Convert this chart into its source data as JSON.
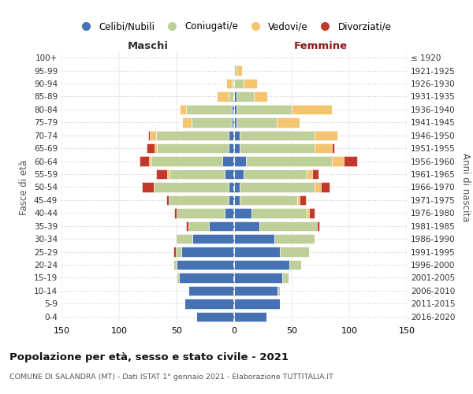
{
  "age_groups": [
    "100+",
    "95-99",
    "90-94",
    "85-89",
    "80-84",
    "75-79",
    "70-74",
    "65-69",
    "60-64",
    "55-59",
    "50-54",
    "45-49",
    "40-44",
    "35-39",
    "30-34",
    "25-29",
    "20-24",
    "15-19",
    "10-14",
    "5-9",
    "0-4"
  ],
  "birth_years": [
    "≤ 1920",
    "1921-1925",
    "1926-1930",
    "1931-1935",
    "1936-1940",
    "1941-1945",
    "1946-1950",
    "1951-1955",
    "1956-1960",
    "1961-1965",
    "1966-1970",
    "1971-1975",
    "1976-1980",
    "1981-1985",
    "1986-1990",
    "1991-1995",
    "1996-2000",
    "2001-2005",
    "2006-2010",
    "2011-2015",
    "2016-2020"
  ],
  "colors": {
    "celibi": "#4672B4",
    "coniugati": "#BECF9A",
    "vedovi": "#F5C46E",
    "divorziati": "#C0392B"
  },
  "males": {
    "celibi": [
      0,
      0,
      0,
      0,
      2,
      2,
      5,
      5,
      10,
      8,
      5,
      5,
      8,
      22,
      36,
      46,
      50,
      48,
      40,
      43,
      33
    ],
    "coniugati": [
      0,
      0,
      2,
      5,
      40,
      35,
      63,
      62,
      62,
      48,
      65,
      52,
      42,
      18,
      15,
      5,
      3,
      2,
      0,
      0,
      0
    ],
    "vedovi": [
      0,
      0,
      5,
      10,
      5,
      8,
      5,
      2,
      2,
      2,
      0,
      0,
      0,
      0,
      0,
      0,
      0,
      0,
      0,
      0,
      0
    ],
    "divorziati": [
      0,
      0,
      0,
      0,
      0,
      0,
      2,
      7,
      8,
      10,
      10,
      2,
      2,
      2,
      0,
      2,
      0,
      0,
      0,
      0,
      0
    ]
  },
  "females": {
    "nubili": [
      0,
      0,
      0,
      2,
      2,
      2,
      5,
      5,
      10,
      8,
      5,
      5,
      15,
      22,
      35,
      40,
      48,
      42,
      38,
      40,
      28
    ],
    "coniugate": [
      0,
      2,
      8,
      15,
      48,
      35,
      65,
      65,
      75,
      55,
      65,
      50,
      48,
      50,
      35,
      25,
      10,
      5,
      2,
      0,
      0
    ],
    "vedove": [
      0,
      5,
      12,
      12,
      35,
      20,
      20,
      15,
      10,
      5,
      5,
      2,
      2,
      0,
      0,
      0,
      0,
      0,
      0,
      0,
      0
    ],
    "divorziate": [
      0,
      0,
      0,
      0,
      0,
      0,
      0,
      2,
      12,
      5,
      8,
      5,
      5,
      2,
      0,
      0,
      0,
      0,
      0,
      0,
      0
    ]
  },
  "title": "Popolazione per età, sesso e stato civile - 2021",
  "subtitle": "COMUNE DI SALANDRA (MT) - Dati ISTAT 1° gennaio 2021 - Elaborazione TUTTITALIA.IT",
  "label_maschi": "Maschi",
  "label_femmine": "Femmine",
  "ylabel_left": "Fasce di età",
  "ylabel_right": "Anni di nascita",
  "xlim": 150,
  "legend_labels": [
    "Celibi/Nubili",
    "Coniugati/e",
    "Vedovi/e",
    "Divorziati/e"
  ],
  "bg_color": "#FFFFFF",
  "grid_color": "#CCCCCC",
  "maschi_color": "#333333",
  "femmine_color": "#8B1A1A"
}
